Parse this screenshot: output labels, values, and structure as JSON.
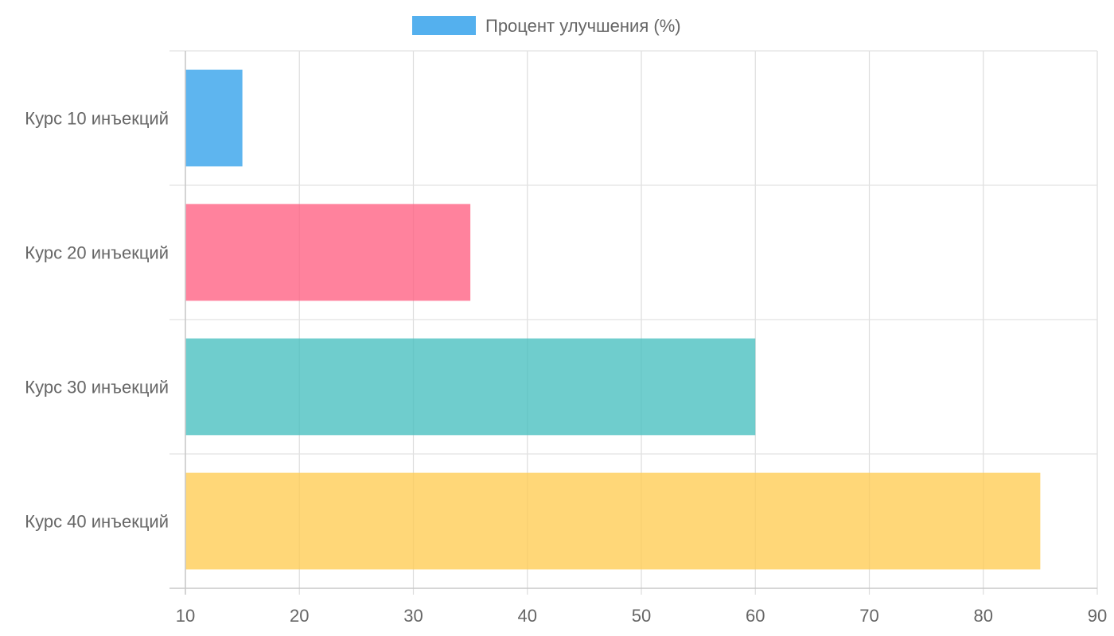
{
  "chart_data": {
    "type": "bar",
    "orientation": "horizontal",
    "categories": [
      "Курс 10 инъекций",
      "Курс 20 инъекций",
      "Курс 30 инъекций",
      "Курс 40 инъекций"
    ],
    "series": [
      {
        "name": "Процент улучшения (%)",
        "values": [
          15,
          35,
          60,
          85
        ]
      }
    ],
    "bar_colors": [
      "#36a2eb",
      "#ff6384",
      "#4bc0c0",
      "#ffcd56"
    ],
    "legend_color": "#36a2eb",
    "xlim": [
      10,
      90
    ],
    "x_ticks": [
      10,
      20,
      30,
      40,
      50,
      60,
      70,
      80,
      90
    ],
    "grid": true,
    "legend_position": "top",
    "title": "",
    "xlabel": "",
    "ylabel": ""
  }
}
